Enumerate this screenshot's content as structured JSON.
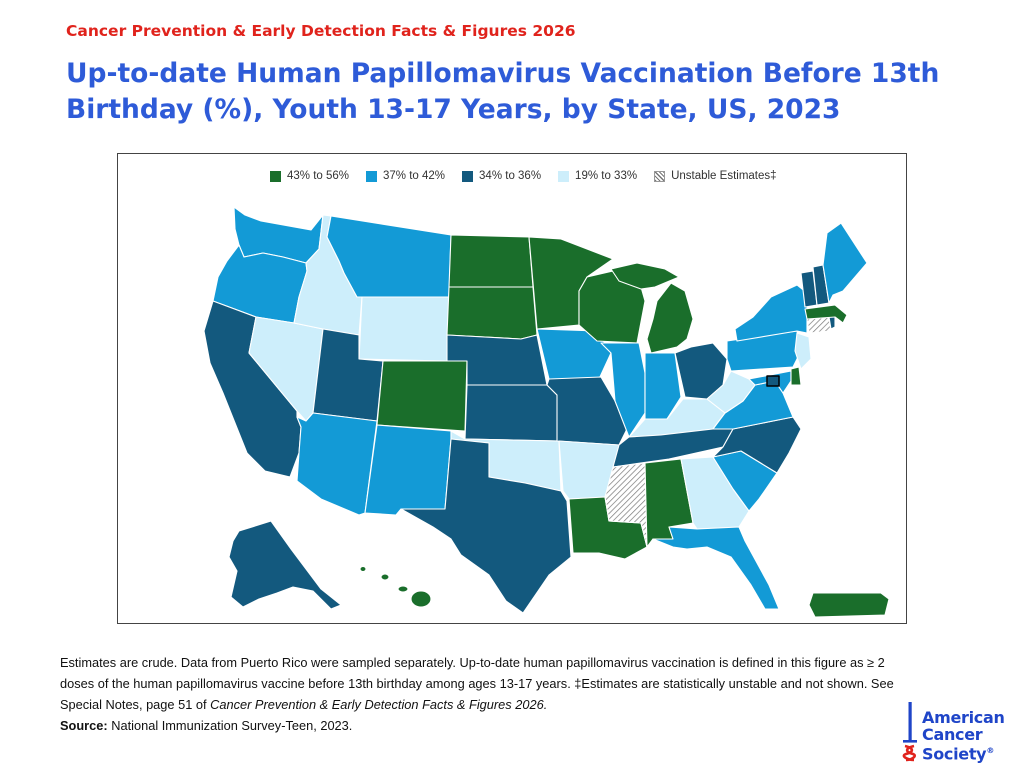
{
  "header": {
    "report_label": "Cancer Prevention & Early Detection Facts & Figures 2026",
    "title": "Up-to-date Human Papillomavirus Vaccination Before 13th Birthday (%), Youth 13-17 Years, by State, US, 2023"
  },
  "legend": {
    "items": [
      {
        "label": "43% to 56%",
        "color": "#1a6e2b"
      },
      {
        "label": "37% to 42%",
        "color": "#139ad6"
      },
      {
        "label": "34% to 36%",
        "color": "#13597e"
      },
      {
        "label": "19% to 33%",
        "color": "#cdeefb"
      },
      {
        "label": "Unstable Estimates‡",
        "pattern": "hatch"
      }
    ]
  },
  "map": {
    "colors": {
      "g": "#1a6e2b",
      "b": "#139ad6",
      "d": "#13597e",
      "l": "#cdeefb",
      "hatch": "#777777",
      "border": "#ffffff"
    },
    "state_classes": {
      "WA": "b",
      "OR": "b",
      "CA": "d",
      "NV": "l",
      "ID": "l",
      "MT": "b",
      "WY": "l",
      "UT": "d",
      "CO": "g",
      "AZ": "b",
      "NM": "b",
      "ND": "g",
      "SD": "g",
      "NE": "d",
      "KS": "d",
      "OK": "l",
      "TX": "d",
      "MN": "g",
      "IA": "b",
      "MO": "d",
      "AR": "l",
      "LA": "g",
      "WI": "g",
      "IL": "b",
      "MI": "g",
      "IN": "b",
      "OH": "d",
      "KY": "l",
      "TN": "d",
      "MS": "hatch",
      "AL": "g",
      "GA": "l",
      "FL": "b",
      "SC": "b",
      "NC": "d",
      "VA": "b",
      "WV": "l",
      "MD": "b",
      "DE": "g",
      "PA": "b",
      "NJ": "l",
      "NY": "b",
      "CT": "hatch",
      "RI": "d",
      "MA": "g",
      "VT": "d",
      "NH": "d",
      "ME": "b",
      "DC": "d",
      "AK": "d",
      "HI": "g",
      "PR": "g"
    }
  },
  "footnote": {
    "line1": "Estimates are crude. Data from Puerto Rico were sampled separately. Up-to-date human papillomavirus vaccination is defined in this figure as ≥ 2",
    "line2": "doses of the human papillomavirus vaccine before 13th birthday among ages 13-17 years. ‡Estimates are statistically unstable and not shown. See",
    "line3_pre": "Special Notes, page 51 of ",
    "line3_ital": "Cancer Prevention & Early Detection Facts & Figures 2026.",
    "source_label": "Source:",
    "source_text": " National Immunization Survey-Teen, 2023."
  },
  "logo": {
    "line1": "American",
    "line2": "Cancer",
    "line3": "Society",
    "mark": "®"
  }
}
